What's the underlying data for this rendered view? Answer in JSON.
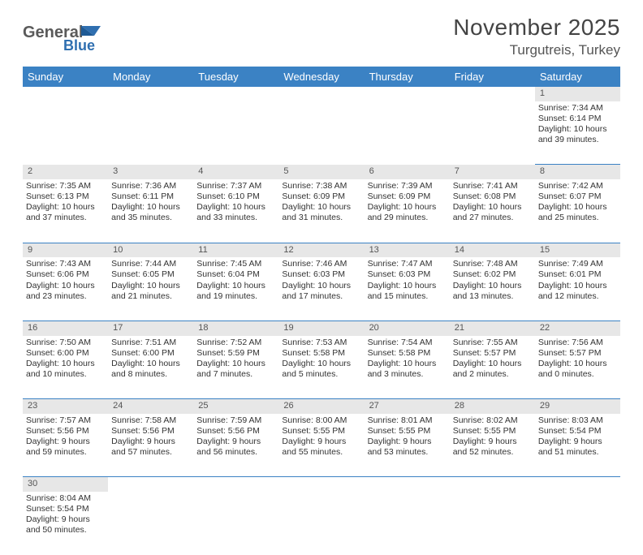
{
  "logo": {
    "text1": "General",
    "text2": "Blue",
    "color1": "#5a5a5a",
    "color2": "#2f6fb0"
  },
  "header": {
    "title": "November 2025",
    "location": "Turgutreis, Turkey"
  },
  "colors": {
    "headerBg": "#3b82c4",
    "headerText": "#ffffff",
    "dayNumBg": "#e7e7e7",
    "border": "#3b82c4"
  },
  "weekdays": [
    "Sunday",
    "Monday",
    "Tuesday",
    "Wednesday",
    "Thursday",
    "Friday",
    "Saturday"
  ],
  "startOffset": 6,
  "days": [
    {
      "n": 1,
      "sunrise": "7:34 AM",
      "sunset": "6:14 PM",
      "daylight": "10 hours and 39 minutes."
    },
    {
      "n": 2,
      "sunrise": "7:35 AM",
      "sunset": "6:13 PM",
      "daylight": "10 hours and 37 minutes."
    },
    {
      "n": 3,
      "sunrise": "7:36 AM",
      "sunset": "6:11 PM",
      "daylight": "10 hours and 35 minutes."
    },
    {
      "n": 4,
      "sunrise": "7:37 AM",
      "sunset": "6:10 PM",
      "daylight": "10 hours and 33 minutes."
    },
    {
      "n": 5,
      "sunrise": "7:38 AM",
      "sunset": "6:09 PM",
      "daylight": "10 hours and 31 minutes."
    },
    {
      "n": 6,
      "sunrise": "7:39 AM",
      "sunset": "6:09 PM",
      "daylight": "10 hours and 29 minutes."
    },
    {
      "n": 7,
      "sunrise": "7:41 AM",
      "sunset": "6:08 PM",
      "daylight": "10 hours and 27 minutes."
    },
    {
      "n": 8,
      "sunrise": "7:42 AM",
      "sunset": "6:07 PM",
      "daylight": "10 hours and 25 minutes."
    },
    {
      "n": 9,
      "sunrise": "7:43 AM",
      "sunset": "6:06 PM",
      "daylight": "10 hours and 23 minutes."
    },
    {
      "n": 10,
      "sunrise": "7:44 AM",
      "sunset": "6:05 PM",
      "daylight": "10 hours and 21 minutes."
    },
    {
      "n": 11,
      "sunrise": "7:45 AM",
      "sunset": "6:04 PM",
      "daylight": "10 hours and 19 minutes."
    },
    {
      "n": 12,
      "sunrise": "7:46 AM",
      "sunset": "6:03 PM",
      "daylight": "10 hours and 17 minutes."
    },
    {
      "n": 13,
      "sunrise": "7:47 AM",
      "sunset": "6:03 PM",
      "daylight": "10 hours and 15 minutes."
    },
    {
      "n": 14,
      "sunrise": "7:48 AM",
      "sunset": "6:02 PM",
      "daylight": "10 hours and 13 minutes."
    },
    {
      "n": 15,
      "sunrise": "7:49 AM",
      "sunset": "6:01 PM",
      "daylight": "10 hours and 12 minutes."
    },
    {
      "n": 16,
      "sunrise": "7:50 AM",
      "sunset": "6:00 PM",
      "daylight": "10 hours and 10 minutes."
    },
    {
      "n": 17,
      "sunrise": "7:51 AM",
      "sunset": "6:00 PM",
      "daylight": "10 hours and 8 minutes."
    },
    {
      "n": 18,
      "sunrise": "7:52 AM",
      "sunset": "5:59 PM",
      "daylight": "10 hours and 7 minutes."
    },
    {
      "n": 19,
      "sunrise": "7:53 AM",
      "sunset": "5:58 PM",
      "daylight": "10 hours and 5 minutes."
    },
    {
      "n": 20,
      "sunrise": "7:54 AM",
      "sunset": "5:58 PM",
      "daylight": "10 hours and 3 minutes."
    },
    {
      "n": 21,
      "sunrise": "7:55 AM",
      "sunset": "5:57 PM",
      "daylight": "10 hours and 2 minutes."
    },
    {
      "n": 22,
      "sunrise": "7:56 AM",
      "sunset": "5:57 PM",
      "daylight": "10 hours and 0 minutes."
    },
    {
      "n": 23,
      "sunrise": "7:57 AM",
      "sunset": "5:56 PM",
      "daylight": "9 hours and 59 minutes."
    },
    {
      "n": 24,
      "sunrise": "7:58 AM",
      "sunset": "5:56 PM",
      "daylight": "9 hours and 57 minutes."
    },
    {
      "n": 25,
      "sunrise": "7:59 AM",
      "sunset": "5:56 PM",
      "daylight": "9 hours and 56 minutes."
    },
    {
      "n": 26,
      "sunrise": "8:00 AM",
      "sunset": "5:55 PM",
      "daylight": "9 hours and 55 minutes."
    },
    {
      "n": 27,
      "sunrise": "8:01 AM",
      "sunset": "5:55 PM",
      "daylight": "9 hours and 53 minutes."
    },
    {
      "n": 28,
      "sunrise": "8:02 AM",
      "sunset": "5:55 PM",
      "daylight": "9 hours and 52 minutes."
    },
    {
      "n": 29,
      "sunrise": "8:03 AM",
      "sunset": "5:54 PM",
      "daylight": "9 hours and 51 minutes."
    },
    {
      "n": 30,
      "sunrise": "8:04 AM",
      "sunset": "5:54 PM",
      "daylight": "9 hours and 50 minutes."
    }
  ],
  "labels": {
    "sunrise": "Sunrise:",
    "sunset": "Sunset:",
    "daylight": "Daylight:"
  }
}
